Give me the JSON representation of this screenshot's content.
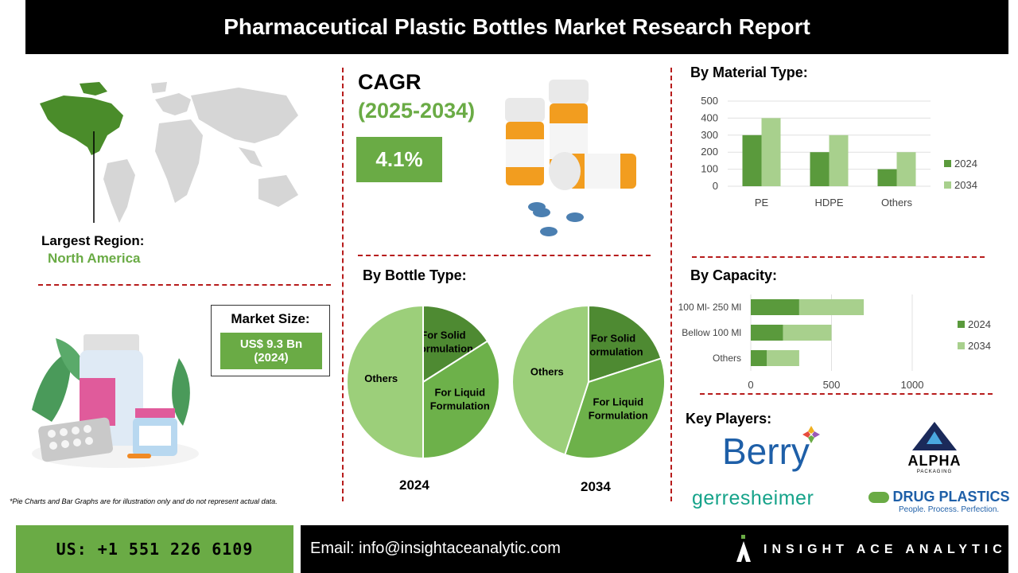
{
  "title": "Pharmaceutical Plastic Bottles Market Research Report",
  "largest_region": {
    "label": "Largest Region:",
    "value": "North America"
  },
  "market_size": {
    "label": "Market Size:",
    "value": "US$ 9.3 Bn (2024)"
  },
  "cagr": {
    "label": "CAGR",
    "period": "(2025-2034)",
    "value": "4.1%"
  },
  "note": "*Pie Charts and Bar Graphs are for illustration only and do not represent actual data.",
  "sections": {
    "material": "By Material Type:",
    "bottle": "By Bottle Type:",
    "capacity": "By Capacity:",
    "players": "Key Players:"
  },
  "players": [
    "Berry",
    "ALPHA",
    "PACKAGING",
    "gerresheimer",
    "DRUG PLASTICS",
    "People. Process. Perfection."
  ],
  "footer": {
    "phone": "US: +1 551 226 6109",
    "email": "Email: info@insightaceanalytic.com",
    "brand": "INSIGHT ACE ANALYTIC"
  },
  "colors": {
    "dark_green": "#5a9a3c",
    "light_green": "#a8d08d",
    "accent_green": "#6aab45",
    "mid_green": "#6db14a",
    "red_dash": "#b71c1c"
  },
  "chart_data": [
    {
      "type": "bar",
      "title": "By Material Type:",
      "categories": [
        "PE",
        "HDPE",
        "Others"
      ],
      "series": [
        {
          "name": "2024",
          "values": [
            300,
            200,
            100
          ]
        },
        {
          "name": "2034",
          "values": [
            400,
            300,
            200
          ]
        }
      ],
      "ylim": [
        0,
        500
      ],
      "yticks": [
        0,
        100,
        200,
        300,
        400,
        500
      ],
      "legend": "right",
      "grid": true
    },
    {
      "type": "pie",
      "title": "By Bottle Type:",
      "label": "2024",
      "slices": [
        {
          "name": "For Solid Formulation",
          "value": 16
        },
        {
          "name": "For Liquid Formulation",
          "value": 34
        },
        {
          "name": "Others",
          "value": 50
        }
      ]
    },
    {
      "type": "pie",
      "title": "By Bottle Type:",
      "label": "2034",
      "slices": [
        {
          "name": "For Solid Formulation",
          "value": 20
        },
        {
          "name": "For Liquid Formulation",
          "value": 35
        },
        {
          "name": "Others",
          "value": 45
        }
      ]
    },
    {
      "type": "bar",
      "orientation": "horizontal",
      "stacked": true,
      "title": "By Capacity:",
      "categories": [
        "100 Ml- 250 Ml",
        "Bellow 100 Ml",
        "Others"
      ],
      "series": [
        {
          "name": "2024",
          "values": [
            300,
            200,
            100
          ]
        },
        {
          "name": "2034",
          "values": [
            400,
            300,
            200
          ]
        }
      ],
      "xlim": [
        0,
        1000
      ],
      "xticks": [
        0,
        500,
        1000
      ],
      "legend": "right",
      "grid": true
    }
  ]
}
